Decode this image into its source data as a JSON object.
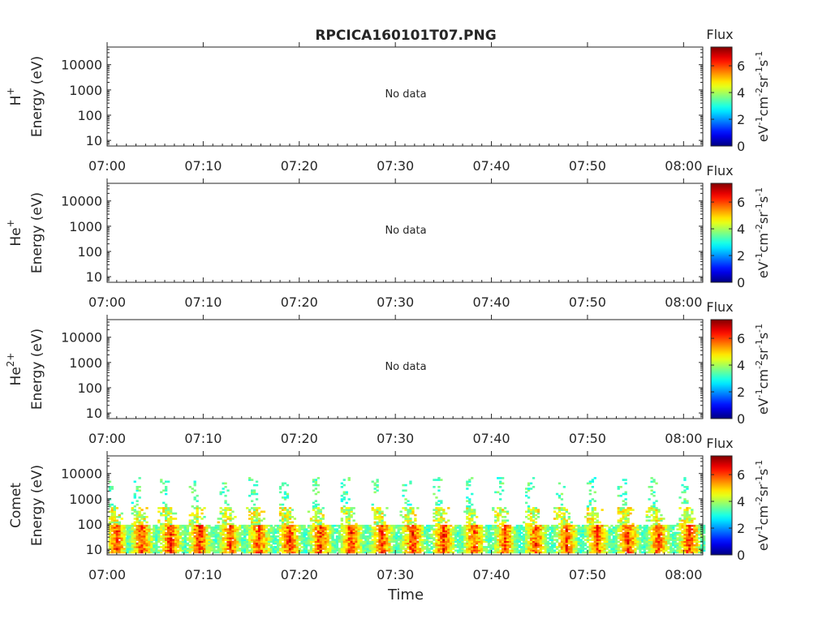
{
  "title": "RPCICA160101T07.PNG",
  "colorbar": {
    "label": "Flux",
    "unit_parts": [
      "eV",
      "-1",
      "cm",
      "-2",
      "sr",
      "-1",
      "s",
      "-1"
    ],
    "ticks": [
      0,
      2,
      4,
      6
    ],
    "range": [
      0,
      7.4
    ],
    "colormap": "jet"
  },
  "chart_data": [
    {
      "type": "heatmap",
      "species": "H",
      "species_sup": "+",
      "ylabel": "Energy (eV)",
      "yscale": "log",
      "ylim": [
        6,
        50000
      ],
      "yticks": [
        "10",
        "100",
        "1000",
        "10000"
      ],
      "xticks": [
        "07:00",
        "07:10",
        "07:20",
        "07:30",
        "07:40",
        "07:50",
        "08:00"
      ],
      "xlabel": "",
      "annotation": "No data",
      "bursts": []
    },
    {
      "type": "heatmap",
      "species": "He",
      "species_sup": "+",
      "ylabel": "Energy (eV)",
      "yscale": "log",
      "ylim": [
        6,
        50000
      ],
      "yticks": [
        "10",
        "100",
        "1000",
        "10000"
      ],
      "xticks": [
        "07:00",
        "07:10",
        "07:20",
        "07:30",
        "07:40",
        "07:50",
        "08:00"
      ],
      "xlabel": "",
      "annotation": "No data",
      "bursts": []
    },
    {
      "type": "heatmap",
      "species": "He",
      "species_sup": "2+",
      "ylabel": "Energy (eV)",
      "yscale": "log",
      "ylim": [
        6,
        50000
      ],
      "yticks": [
        "10",
        "100",
        "1000",
        "10000"
      ],
      "xticks": [
        "07:00",
        "07:10",
        "07:20",
        "07:30",
        "07:40",
        "07:50",
        "08:00"
      ],
      "xlabel": "",
      "annotation": "No data",
      "bursts": []
    },
    {
      "type": "heatmap",
      "species": "Comet",
      "species_sup": "",
      "ylabel": "Energy (eV)",
      "yscale": "log",
      "ylim": [
        6,
        50000
      ],
      "yticks": [
        "10",
        "100",
        "1000",
        "10000"
      ],
      "xticks": [
        "07:00",
        "07:10",
        "07:20",
        "07:30",
        "07:40",
        "07:50",
        "08:00"
      ],
      "xlabel": "Time",
      "annotation": "",
      "bursts": [
        {
          "t_min": 1.0,
          "peak_flux": 6.8
        },
        {
          "t_min": 3.6,
          "peak_flux": 6.9
        },
        {
          "t_min": 6.6,
          "peak_flux": 7.0
        },
        {
          "t_min": 9.6,
          "peak_flux": 7.0
        },
        {
          "t_min": 12.8,
          "peak_flux": 6.8
        },
        {
          "t_min": 15.8,
          "peak_flux": 6.9
        },
        {
          "t_min": 19.0,
          "peak_flux": 7.0
        },
        {
          "t_min": 22.2,
          "peak_flux": 6.9
        },
        {
          "t_min": 25.4,
          "peak_flux": 7.0
        },
        {
          "t_min": 28.6,
          "peak_flux": 6.9
        },
        {
          "t_min": 31.8,
          "peak_flux": 7.0
        },
        {
          "t_min": 35.0,
          "peak_flux": 7.0
        },
        {
          "t_min": 38.2,
          "peak_flux": 6.8
        },
        {
          "t_min": 41.4,
          "peak_flux": 6.7
        },
        {
          "t_min": 44.6,
          "peak_flux": 6.8
        },
        {
          "t_min": 47.8,
          "peak_flux": 6.8
        },
        {
          "t_min": 51.0,
          "peak_flux": 6.9
        },
        {
          "t_min": 54.2,
          "peak_flux": 6.9
        },
        {
          "t_min": 57.4,
          "peak_flux": 6.8
        },
        {
          "t_min": 60.6,
          "peak_flux": 6.9
        }
      ]
    }
  ]
}
